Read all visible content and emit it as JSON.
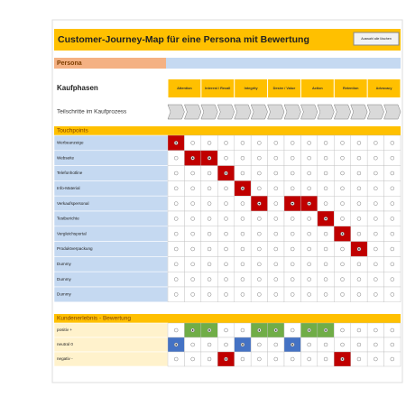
{
  "header": {
    "title": "Customer-Journey-Map für eine Persona mit Bewertung",
    "button": "Auswahl alle löschen"
  },
  "persona": {
    "label": "Persona"
  },
  "phases": {
    "label": "Kaufphasen",
    "items": [
      "Attention",
      "Interest / Recall",
      "Integrity",
      "Desire / Value",
      "Action",
      "Retention",
      "Advocacy"
    ]
  },
  "steps": {
    "label": "Teilschritte im Kaufprozess"
  },
  "touchpoints": {
    "label": "Touchpoints",
    "color": "#c00000",
    "rows": [
      {
        "label": "Werbeanzeige",
        "selected": [
          0
        ]
      },
      {
        "label": "Webseite",
        "selected": [
          1,
          2
        ]
      },
      {
        "label": "Telefonhotline",
        "selected": [
          3
        ]
      },
      {
        "label": "Info-Material",
        "selected": [
          4
        ]
      },
      {
        "label": "Verkaufspersonal",
        "selected": [
          5,
          7,
          8
        ]
      },
      {
        "label": "Testberichte",
        "selected": [
          9
        ]
      },
      {
        "label": "Vergleichsportal",
        "selected": [
          10
        ]
      },
      {
        "label": "Produktverpackung",
        "selected": [
          11
        ]
      },
      {
        "label": "Dummy",
        "selected": []
      },
      {
        "label": "Dummy",
        "selected": []
      },
      {
        "label": "Dummy",
        "selected": []
      }
    ]
  },
  "rating": {
    "label": "Kundenerlebnis - Bewertung",
    "rows": [
      {
        "label": "positiv +",
        "color": "#70ad47",
        "selected": [
          1,
          2,
          5,
          6,
          8,
          9
        ]
      },
      {
        "label": "neutral 0",
        "color": "#4472c4",
        "selected": [
          0,
          4,
          7
        ]
      },
      {
        "label": "negativ -",
        "color": "#c00000",
        "selected": [
          3,
          10
        ]
      }
    ]
  }
}
